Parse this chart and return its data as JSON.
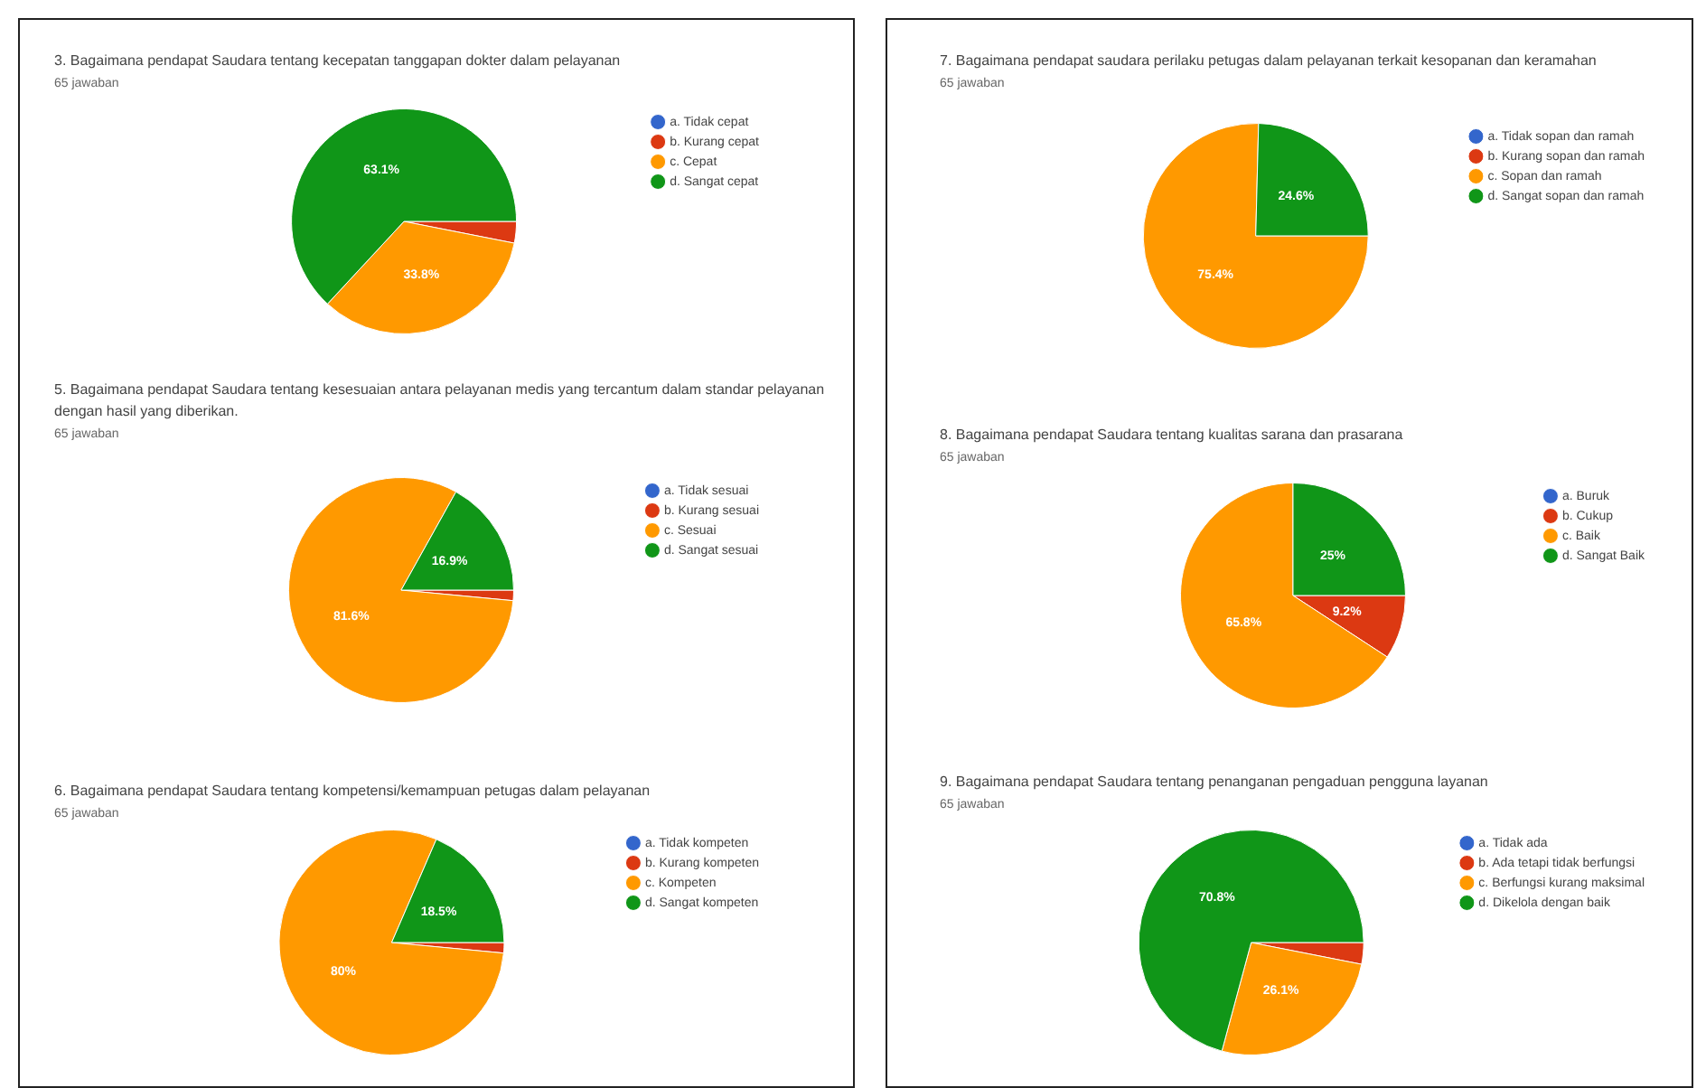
{
  "chart_data": [
    {
      "type": "pie",
      "title": "3. Bagaimana pendapat Saudara tentang kecepatan tanggapan dokter dalam pelayanan",
      "subtitle": "65 jawaban",
      "categories": [
        "a. Tidak cepat",
        "b. Kurang cepat",
        "c. Cepat",
        "d. Sangat cepat"
      ],
      "values": [
        0,
        3.1,
        33.8,
        63.1
      ],
      "colors": [
        "#3366cc",
        "#dc3912",
        "#ff9900",
        "#109618"
      ],
      "value_labels": [
        null,
        null,
        "33.8%",
        "63.1%"
      ],
      "legend": "right"
    },
    {
      "type": "pie",
      "title": "5. Bagaimana pendapat Saudara tentang kesesuaian antara pelayanan medis yang tercantum dalam standar pelayanan dengan hasil yang diberikan.",
      "subtitle": "65 jawaban",
      "categories": [
        "a. Tidak sesuai",
        "b. Kurang sesuai",
        "c. Sesuai",
        "d. Sangat sesuai"
      ],
      "values": [
        0,
        1.5,
        81.6,
        16.9
      ],
      "colors": [
        "#3366cc",
        "#dc3912",
        "#ff9900",
        "#109618"
      ],
      "value_labels": [
        null,
        null,
        "81.6%",
        "16.9%"
      ],
      "legend": "right"
    },
    {
      "type": "pie",
      "title": "6. Bagaimana pendapat Saudara tentang kompetensi/kemampuan petugas dalam pelayanan",
      "subtitle": "65 jawaban",
      "categories": [
        "a. Tidak kompeten",
        "b. Kurang kompeten",
        "c. Kompeten",
        "d. Sangat kompeten"
      ],
      "values": [
        0,
        1.5,
        80.0,
        18.5
      ],
      "colors": [
        "#3366cc",
        "#dc3912",
        "#ff9900",
        "#109618"
      ],
      "value_labels": [
        null,
        null,
        "80%",
        "18.5%"
      ],
      "legend": "right"
    },
    {
      "type": "pie",
      "title": "7. Bagaimana pendapat saudara perilaku petugas dalam pelayanan terkait kesopanan dan keramahan",
      "subtitle": "65 jawaban",
      "categories": [
        "a. Tidak sopan dan ramah",
        "b. Kurang sopan dan ramah",
        "c. Sopan dan ramah",
        "d. Sangat sopan dan ramah"
      ],
      "values": [
        0,
        0,
        75.4,
        24.6
      ],
      "colors": [
        "#3366cc",
        "#dc3912",
        "#ff9900",
        "#109618"
      ],
      "value_labels": [
        null,
        null,
        "75.4%",
        "24.6%"
      ],
      "legend": "right"
    },
    {
      "type": "pie",
      "title": "8. Bagaimana pendapat Saudara tentang kualitas sarana dan prasarana",
      "subtitle": "65 jawaban",
      "categories": [
        "a. Buruk",
        "b. Cukup",
        "c. Baik",
        "d. Sangat Baik"
      ],
      "values": [
        0,
        9.2,
        65.8,
        25.0
      ],
      "colors": [
        "#3366cc",
        "#dc3912",
        "#ff9900",
        "#109618"
      ],
      "value_labels": [
        null,
        "9.2%",
        "65.8%",
        "25%"
      ],
      "legend": "right"
    },
    {
      "type": "pie",
      "title": "9. Bagaimana pendapat Saudara tentang penanganan pengaduan pengguna layanan",
      "subtitle": "65 jawaban",
      "categories": [
        "a. Tidak ada",
        "b. Ada tetapi tidak berfungsi",
        "c. Berfungsi kurang maksimal",
        "d. Dikelola dengan baik"
      ],
      "values": [
        0,
        3.1,
        26.1,
        70.8
      ],
      "colors": [
        "#3366cc",
        "#dc3912",
        "#ff9900",
        "#109618"
      ],
      "value_labels": [
        null,
        null,
        "26.1%",
        "70.8%"
      ],
      "legend": "right"
    }
  ]
}
